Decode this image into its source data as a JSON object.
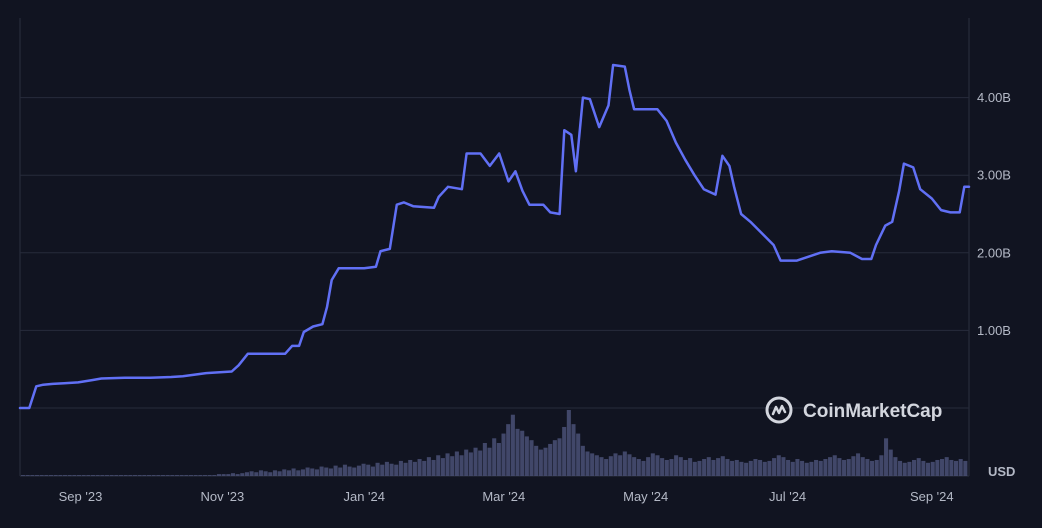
{
  "chart_data": {
    "type": "line",
    "ylabel": "",
    "xlabel": "",
    "y_unit": "USD",
    "ylim": [
      -1.0,
      5.0
    ],
    "yticks": [
      {
        "value": 1,
        "label": "1.00B"
      },
      {
        "value": 2,
        "label": "2.00B"
      },
      {
        "value": 3,
        "label": "3.00B"
      },
      {
        "value": 4,
        "label": "4.00B"
      }
    ],
    "xticks": [
      "Sep '23",
      "Nov '23",
      "Jan '24",
      "Mar '24",
      "May '24",
      "Jul '24",
      "Sep '24"
    ],
    "xtick_dates": [
      "2023-09-01",
      "2023-11-01",
      "2024-01-01",
      "2024-03-01",
      "2024-05-01",
      "2024-07-01",
      "2024-09-01"
    ],
    "xlim": [
      "2023-08-06",
      "2024-09-17"
    ],
    "grid": true,
    "series": [
      {
        "color": "#6170f5",
        "points": [
          [
            "2023-08-06",
            0.0
          ],
          [
            "2023-08-10",
            0.0
          ],
          [
            "2023-08-13",
            0.28
          ],
          [
            "2023-08-16",
            0.3
          ],
          [
            "2023-08-20",
            0.31
          ],
          [
            "2023-08-25",
            0.32
          ],
          [
            "2023-08-31",
            0.33
          ],
          [
            "2023-09-06",
            0.36
          ],
          [
            "2023-09-10",
            0.38
          ],
          [
            "2023-09-20",
            0.39
          ],
          [
            "2023-10-01",
            0.39
          ],
          [
            "2023-10-10",
            0.4
          ],
          [
            "2023-10-15",
            0.41
          ],
          [
            "2023-10-25",
            0.45
          ],
          [
            "2023-11-05",
            0.47
          ],
          [
            "2023-11-08",
            0.55
          ],
          [
            "2023-11-12",
            0.7
          ],
          [
            "2023-11-20",
            0.7
          ],
          [
            "2023-11-28",
            0.7
          ],
          [
            "2023-12-01",
            0.8
          ],
          [
            "2023-12-04",
            0.8
          ],
          [
            "2023-12-06",
            0.98
          ],
          [
            "2023-12-10",
            1.05
          ],
          [
            "2023-12-14",
            1.08
          ],
          [
            "2023-12-16",
            1.3
          ],
          [
            "2023-12-18",
            1.65
          ],
          [
            "2023-12-21",
            1.8
          ],
          [
            "2023-12-26",
            1.8
          ],
          [
            "2024-01-01",
            1.8
          ],
          [
            "2024-01-06",
            1.82
          ],
          [
            "2024-01-08",
            2.02
          ],
          [
            "2024-01-12",
            2.05
          ],
          [
            "2024-01-15",
            2.62
          ],
          [
            "2024-01-18",
            2.65
          ],
          [
            "2024-01-22",
            2.6
          ],
          [
            "2024-01-31",
            2.58
          ],
          [
            "2024-02-02",
            2.72
          ],
          [
            "2024-02-06",
            2.85
          ],
          [
            "2024-02-12",
            2.82
          ],
          [
            "2024-02-14",
            3.28
          ],
          [
            "2024-02-20",
            3.28
          ],
          [
            "2024-02-24",
            3.12
          ],
          [
            "2024-02-28",
            3.28
          ],
          [
            "2024-03-03",
            2.92
          ],
          [
            "2024-03-06",
            3.05
          ],
          [
            "2024-03-09",
            2.8
          ],
          [
            "2024-03-12",
            2.62
          ],
          [
            "2024-03-18",
            2.62
          ],
          [
            "2024-03-21",
            2.52
          ],
          [
            "2024-03-25",
            2.5
          ],
          [
            "2024-03-27",
            3.58
          ],
          [
            "2024-03-30",
            3.52
          ],
          [
            "2024-04-01",
            3.05
          ],
          [
            "2024-04-04",
            4.0
          ],
          [
            "2024-04-07",
            3.98
          ],
          [
            "2024-04-11",
            3.62
          ],
          [
            "2024-04-15",
            3.9
          ],
          [
            "2024-04-17",
            4.42
          ],
          [
            "2024-04-22",
            4.4
          ],
          [
            "2024-04-24",
            4.1
          ],
          [
            "2024-04-26",
            3.85
          ],
          [
            "2024-05-01",
            3.85
          ],
          [
            "2024-05-06",
            3.85
          ],
          [
            "2024-05-10",
            3.7
          ],
          [
            "2024-05-14",
            3.42
          ],
          [
            "2024-05-18",
            3.2
          ],
          [
            "2024-05-22",
            3.0
          ],
          [
            "2024-05-26",
            2.82
          ],
          [
            "2024-05-31",
            2.75
          ],
          [
            "2024-06-03",
            3.25
          ],
          [
            "2024-06-06",
            3.12
          ],
          [
            "2024-06-08",
            2.85
          ],
          [
            "2024-06-11",
            2.5
          ],
          [
            "2024-06-15",
            2.4
          ],
          [
            "2024-06-20",
            2.25
          ],
          [
            "2024-06-25",
            2.1
          ],
          [
            "2024-06-28",
            1.9
          ],
          [
            "2024-07-05",
            1.9
          ],
          [
            "2024-07-10",
            1.95
          ],
          [
            "2024-07-15",
            2.0
          ],
          [
            "2024-07-20",
            2.02
          ],
          [
            "2024-07-28",
            2.0
          ],
          [
            "2024-08-02",
            1.92
          ],
          [
            "2024-08-06",
            1.92
          ],
          [
            "2024-08-08",
            2.1
          ],
          [
            "2024-08-12",
            2.35
          ],
          [
            "2024-08-15",
            2.4
          ],
          [
            "2024-08-18",
            2.8
          ],
          [
            "2024-08-20",
            3.15
          ],
          [
            "2024-08-24",
            3.1
          ],
          [
            "2024-08-27",
            2.82
          ],
          [
            "2024-09-01",
            2.7
          ],
          [
            "2024-09-05",
            2.55
          ],
          [
            "2024-09-09",
            2.52
          ],
          [
            "2024-09-13",
            2.52
          ],
          [
            "2024-09-15",
            2.85
          ],
          [
            "2024-09-17",
            2.85
          ]
        ]
      }
    ],
    "volume": {
      "color": "#4a5075",
      "values": [
        1,
        1,
        1,
        1,
        1,
        1,
        1,
        1,
        1,
        1,
        1,
        1,
        1,
        1,
        1,
        1,
        1,
        1,
        1,
        1,
        1,
        1,
        1,
        1,
        1,
        1,
        1,
        1,
        1,
        1,
        1,
        1,
        1,
        1,
        1,
        1,
        1,
        1,
        1,
        1,
        1,
        1,
        2,
        2,
        2,
        3,
        2,
        3,
        4,
        5,
        4,
        6,
        5,
        4,
        6,
        5,
        7,
        6,
        8,
        6,
        7,
        9,
        8,
        7,
        10,
        9,
        8,
        11,
        9,
        12,
        10,
        9,
        11,
        13,
        12,
        10,
        14,
        12,
        15,
        13,
        12,
        16,
        14,
        17,
        15,
        18,
        16,
        20,
        17,
        22,
        19,
        24,
        21,
        26,
        22,
        28,
        25,
        30,
        27,
        35,
        30,
        40,
        35,
        45,
        55,
        65,
        50,
        48,
        42,
        38,
        32,
        28,
        30,
        34,
        38,
        40,
        52,
        70,
        55,
        45,
        32,
        26,
        24,
        22,
        20,
        18,
        21,
        24,
        22,
        26,
        23,
        20,
        18,
        16,
        20,
        24,
        22,
        19,
        17,
        18,
        22,
        20,
        17,
        19,
        15,
        16,
        18,
        20,
        17,
        19,
        21,
        18,
        16,
        17,
        15,
        14,
        16,
        18,
        17,
        15,
        16,
        19,
        22,
        20,
        17,
        15,
        18,
        16,
        14,
        15,
        17,
        16,
        18,
        20,
        22,
        19,
        17,
        18,
        21,
        24,
        20,
        18,
        16,
        17,
        22,
        40,
        28,
        20,
        16,
        14,
        15,
        17,
        19,
        16,
        14,
        15,
        17,
        18,
        20,
        17,
        16,
        18,
        16
      ]
    }
  },
  "watermark": {
    "brand": "CoinMarketCap"
  }
}
